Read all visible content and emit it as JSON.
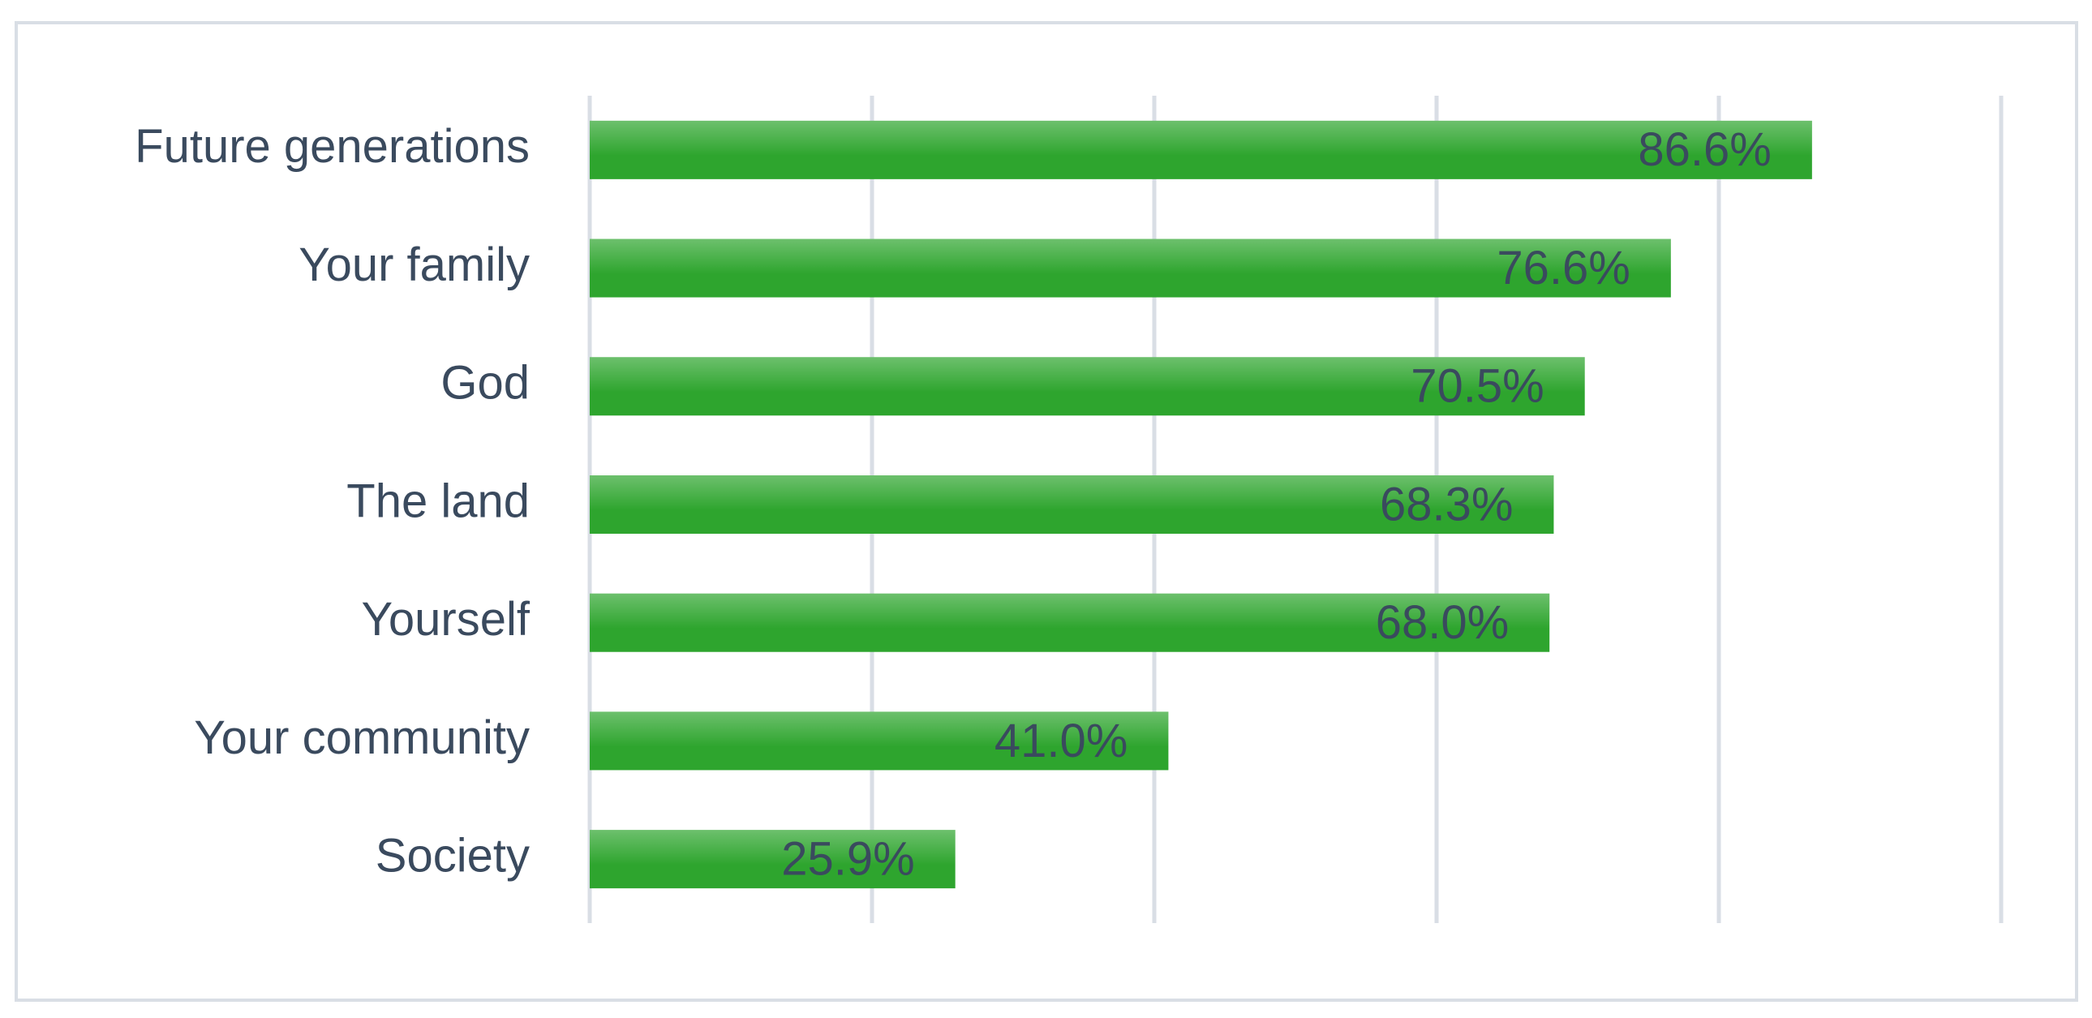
{
  "chart_data": {
    "type": "bar",
    "orientation": "horizontal",
    "categories": [
      "Future generations",
      "Your family",
      "God",
      "The land",
      "Yourself",
      "Your community",
      "Society"
    ],
    "values": [
      86.6,
      76.6,
      70.5,
      68.3,
      68.0,
      41.0,
      25.9
    ],
    "value_labels": [
      "86.6%",
      "76.6%",
      "70.5%",
      "68.3%",
      "68.0%",
      "41.0%",
      "25.9%"
    ],
    "color": "#2ea52e",
    "xlim": [
      0,
      100
    ],
    "xticks": [
      0,
      20,
      40,
      60,
      80,
      100
    ],
    "grid": true
  }
}
